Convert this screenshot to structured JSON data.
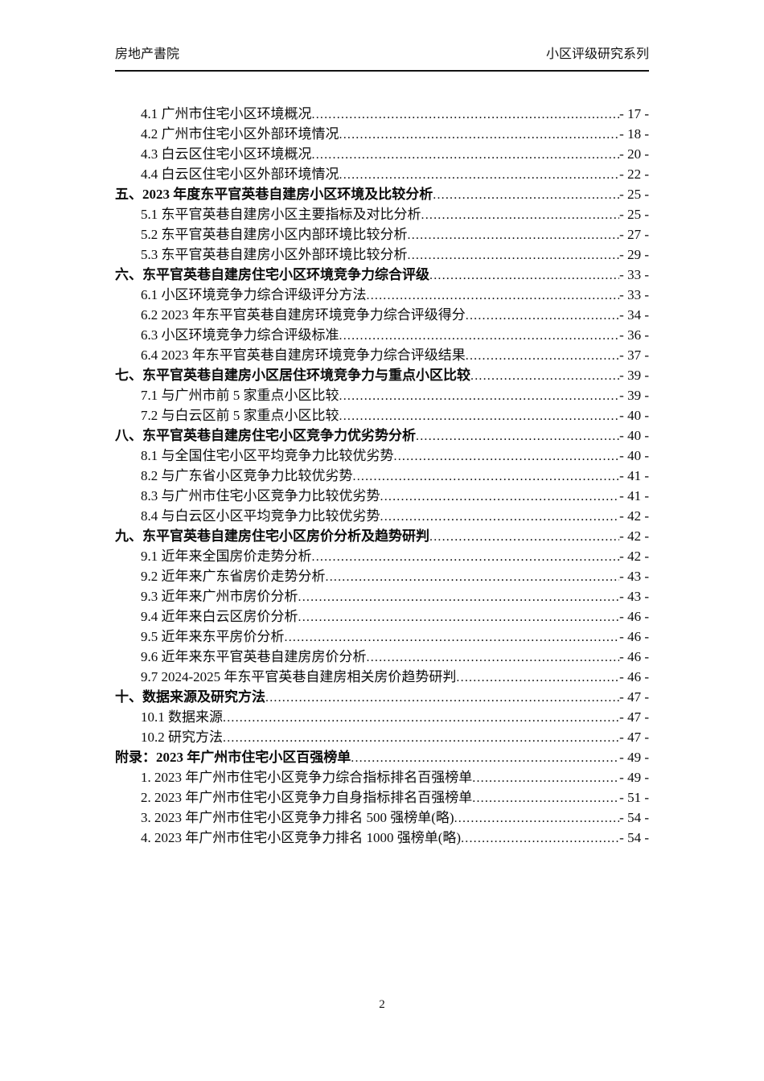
{
  "header": {
    "left": "房地产書院",
    "right": "小区评级研究系列"
  },
  "toc": {
    "entries": [
      {
        "level": 2,
        "text": "4.1 广州市住宅小区环境概况",
        "page": "- 17 -"
      },
      {
        "level": 2,
        "text": "4.2 广州市住宅小区外部环境情况",
        "page": "- 18 -"
      },
      {
        "level": 2,
        "text": "4.3 白云区住宅小区环境概况",
        "page": "- 20 -"
      },
      {
        "level": 2,
        "text": "4.4 白云区住宅小区外部环境情况",
        "page": "- 22 -"
      },
      {
        "level": 1,
        "text": "五、2023 年度东平官英巷自建房小区环境及比较分析",
        "page": "- 25 -"
      },
      {
        "level": 2,
        "text": "5.1 东平官英巷自建房小区主要指标及对比分析",
        "page": "- 25 -"
      },
      {
        "level": 2,
        "text": "5.2 东平官英巷自建房小区内部环境比较分析",
        "page": "- 27 -"
      },
      {
        "level": 2,
        "text": "5.3 东平官英巷自建房小区外部环境比较分析",
        "page": "- 29 -"
      },
      {
        "level": 1,
        "text": "六、东平官英巷自建房住宅小区环境竞争力综合评级",
        "page": "- 33 -"
      },
      {
        "level": 2,
        "text": "6.1 小区环境竞争力综合评级评分方法",
        "page": "- 33 -"
      },
      {
        "level": 2,
        "text": "6.2 2023 年东平官英巷自建房环境竞争力综合评级得分",
        "page": "- 34 -"
      },
      {
        "level": 2,
        "text": "6.3 小区环境竞争力综合评级标准",
        "page": "- 36 -"
      },
      {
        "level": 2,
        "text": "6.4 2023 年东平官英巷自建房环境竞争力综合评级结果",
        "page": "- 37 -"
      },
      {
        "level": 1,
        "text": "七、东平官英巷自建房小区居住环境竞争力与重点小区比较",
        "page": "- 39 -"
      },
      {
        "level": 2,
        "text": "7.1 与广州市前 5 家重点小区比较",
        "page": "- 39 -"
      },
      {
        "level": 2,
        "text": "7.2 与白云区前 5 家重点小区比较",
        "page": "- 40 -"
      },
      {
        "level": 1,
        "text": "八、东平官英巷自建房住宅小区竞争力优劣势分析",
        "page": "- 40 -"
      },
      {
        "level": 2,
        "text": "8.1 与全国住宅小区平均竞争力比较优劣势",
        "page": "- 40 -"
      },
      {
        "level": 2,
        "text": "8.2 与广东省小区竞争力比较优劣势",
        "page": "- 41 -"
      },
      {
        "level": 2,
        "text": "8.3 与广州市住宅小区竞争力比较优劣势",
        "page": "- 41 -"
      },
      {
        "level": 2,
        "text": "8.4 与白云区小区平均竞争力比较优劣势",
        "page": "- 42 -"
      },
      {
        "level": 1,
        "text": "九、东平官英巷自建房住宅小区房价分析及趋势研判",
        "page": "- 42 -"
      },
      {
        "level": 2,
        "text": "9.1 近年来全国房价走势分析",
        "page": "- 42 -"
      },
      {
        "level": 2,
        "text": "9.2 近年来广东省房价走势分析",
        "page": "- 43 -"
      },
      {
        "level": 2,
        "text": "9.3 近年来广州市房价分析",
        "page": "- 43 -"
      },
      {
        "level": 2,
        "text": "9.4 近年来白云区房价分析",
        "page": "- 46 -"
      },
      {
        "level": 2,
        "text": "9.5 近年来东平房价分析",
        "page": "- 46 -"
      },
      {
        "level": 2,
        "text": "9.6 近年来东平官英巷自建房房价分析",
        "page": "- 46 -"
      },
      {
        "level": 2,
        "text": "9.7 2024-2025 年东平官英巷自建房相关房价趋势研判",
        "page": "- 46 -"
      },
      {
        "level": 1,
        "text": "十、数据来源及研究方法",
        "page": "- 47 -"
      },
      {
        "level": 2,
        "text": "10.1 数据来源",
        "page": "- 47 -"
      },
      {
        "level": 2,
        "text": "10.2 研究方法",
        "page": "- 47 -"
      },
      {
        "level": 1,
        "text": "附录：2023 年广州市住宅小区百强榜单",
        "page": "- 49 -"
      },
      {
        "level": 2,
        "text": "1. 2023 年广州市住宅小区竞争力综合指标排名百强榜单",
        "page": "- 49 -"
      },
      {
        "level": 2,
        "text": "2. 2023 年广州市住宅小区竞争力自身指标排名百强榜单",
        "page": "- 51 -"
      },
      {
        "level": 2,
        "text": "3. 2023 年广州市住宅小区竞争力排名 500 强榜单(略)",
        "page": "- 54 -"
      },
      {
        "level": 2,
        "text": "4. 2023 年广州市住宅小区竞争力排名 1000 强榜单(略)",
        "page": "- 54 -"
      }
    ]
  },
  "footer": {
    "page_number": "2"
  }
}
